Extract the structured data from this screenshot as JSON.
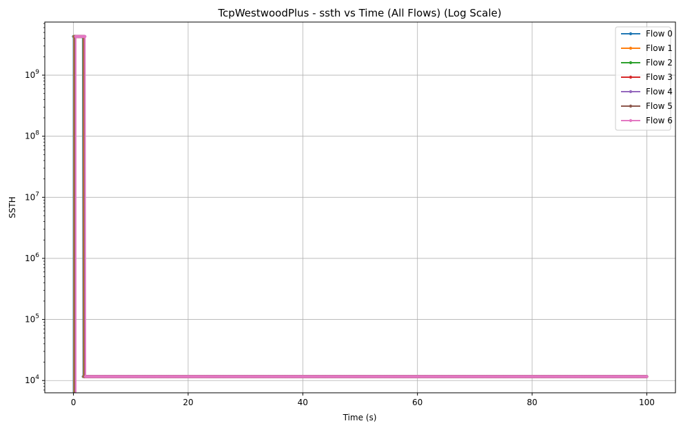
{
  "chart_data": {
    "type": "line",
    "title": "TcpWestwoodPlus - ssth vs Time (All Flows) (Log Scale)",
    "xlabel": "Time (s)",
    "ylabel": "SSTH",
    "xlim": [
      -5,
      105
    ],
    "ylim": [
      6300,
      7400000000
    ],
    "yscale": "log",
    "x_ticks": [
      0,
      20,
      40,
      60,
      80,
      100
    ],
    "y_ticks": [
      {
        "value": 10000,
        "base": "10",
        "exp": "4"
      },
      {
        "value": 100000,
        "base": "10",
        "exp": "5"
      },
      {
        "value": 1000000,
        "base": "10",
        "exp": "6"
      },
      {
        "value": 10000000,
        "base": "10",
        "exp": "7"
      },
      {
        "value": 100000000,
        "base": "10",
        "exp": "8"
      },
      {
        "value": 1000000000,
        "base": "10",
        "exp": "9"
      }
    ],
    "grid": true,
    "legend_position": "top-right",
    "series": [
      {
        "name": "Flow 0",
        "color": "#1f77b4",
        "x": [
          0.0,
          0.1,
          0.2,
          0.3,
          0.4,
          0.5,
          0.6,
          0.7,
          0.8,
          0.9,
          1.0,
          1.1,
          1.2,
          1.3,
          1.4,
          1.5,
          1.6,
          1.7,
          100.0
        ],
        "y": [
          4294967295,
          4294967295,
          4294967295,
          4294967295,
          4294967295,
          4294967295,
          4294967295,
          4294967295,
          4294967295,
          4294967295,
          4294967295,
          4294967295,
          4294967295,
          4294967295,
          4294967295,
          4294967295,
          4294967295,
          11600,
          11600
        ]
      },
      {
        "name": "Flow 1",
        "color": "#ff7f0e",
        "x": [
          0.1,
          0.2,
          0.3,
          0.4,
          0.5,
          0.6,
          0.7,
          0.8,
          0.9,
          1.0,
          1.1,
          1.2,
          1.3,
          1.4,
          1.5,
          1.6,
          1.7,
          1.8,
          100.0
        ],
        "y": [
          4294967295,
          4294967295,
          4294967295,
          4294967295,
          4294967295,
          4294967295,
          4294967295,
          4294967295,
          4294967295,
          4294967295,
          4294967295,
          4294967295,
          4294967295,
          4294967295,
          4294967295,
          4294967295,
          4294967295,
          11600,
          11600
        ]
      },
      {
        "name": "Flow 2",
        "color": "#2ca02c",
        "x": [
          0.2,
          0.3,
          0.4,
          0.5,
          0.6,
          0.7,
          0.8,
          0.9,
          1.0,
          1.1,
          1.2,
          1.3,
          1.4,
          1.5,
          1.6,
          1.7,
          1.8,
          1.9,
          100.0
        ],
        "y": [
          4294967295,
          4294967295,
          4294967295,
          4294967295,
          4294967295,
          4294967295,
          4294967295,
          4294967295,
          4294967295,
          4294967295,
          4294967295,
          4294967295,
          4294967295,
          4294967295,
          4294967295,
          4294967295,
          4294967295,
          11600,
          11600
        ]
      },
      {
        "name": "Flow 3",
        "color": "#d62728",
        "x": [
          0.25,
          0.35,
          0.45,
          0.55,
          0.65,
          0.75,
          0.85,
          0.95,
          1.05,
          1.15,
          1.25,
          1.35,
          1.45,
          1.55,
          1.65,
          1.75,
          1.85,
          1.95,
          100.0
        ],
        "y": [
          4294967295,
          4294967295,
          4294967295,
          4294967295,
          4294967295,
          4294967295,
          4294967295,
          4294967295,
          4294967295,
          4294967295,
          4294967295,
          4294967295,
          4294967295,
          4294967295,
          4294967295,
          4294967295,
          4294967295,
          11600,
          11600
        ]
      },
      {
        "name": "Flow 4",
        "color": "#9467bd",
        "x": [
          0.3,
          0.4,
          0.5,
          0.6,
          0.7,
          0.8,
          0.9,
          1.0,
          1.1,
          1.2,
          1.3,
          1.4,
          1.5,
          1.6,
          1.7,
          1.8,
          1.9,
          2.0,
          100.0
        ],
        "y": [
          4294967295,
          4294967295,
          4294967295,
          4294967295,
          4294967295,
          4294967295,
          4294967295,
          4294967295,
          4294967295,
          4294967295,
          4294967295,
          4294967295,
          4294967295,
          4294967295,
          4294967295,
          4294967295,
          4294967295,
          11600,
          11600
        ]
      },
      {
        "name": "Flow 5",
        "color": "#8c564b",
        "x": [
          0.35,
          0.45,
          0.55,
          0.65,
          0.75,
          0.85,
          0.95,
          1.05,
          1.15,
          1.25,
          1.35,
          1.45,
          1.55,
          1.65,
          1.75,
          1.85,
          1.95,
          2.05,
          100.0
        ],
        "y": [
          4294967295,
          4294967295,
          4294967295,
          4294967295,
          4294967295,
          4294967295,
          4294967295,
          4294967295,
          4294967295,
          4294967295,
          4294967295,
          4294967295,
          4294967295,
          4294967295,
          4294967295,
          4294967295,
          4294967295,
          11600,
          11600
        ]
      },
      {
        "name": "Flow 6",
        "color": "#e377c2",
        "x": [
          0.4,
          0.5,
          0.6,
          0.7,
          0.8,
          0.9,
          1.0,
          1.1,
          1.2,
          1.3,
          1.4,
          1.5,
          1.6,
          1.7,
          1.8,
          1.9,
          2.0,
          2.1,
          100.0
        ],
        "y": [
          4294967295,
          4294967295,
          4294967295,
          4294967295,
          4294967295,
          4294967295,
          4294967295,
          4294967295,
          4294967295,
          4294967295,
          4294967295,
          4294967295,
          4294967295,
          4294967295,
          4294967295,
          4294967295,
          4294967295,
          11600,
          11600
        ]
      }
    ]
  }
}
